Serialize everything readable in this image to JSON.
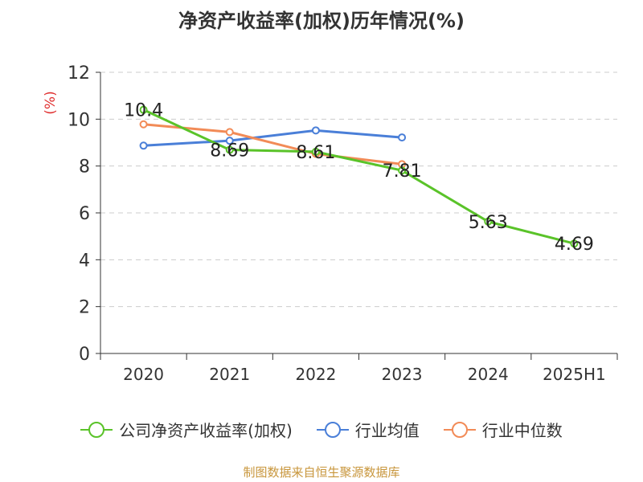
{
  "chart_data": {
    "type": "line",
    "title": "净资产收益率(加权)历年情况(%)",
    "ylabel": "(%)",
    "categories": [
      "2020",
      "2021",
      "2022",
      "2023",
      "2024",
      "2025H1"
    ],
    "ylim": [
      0,
      12
    ],
    "yticks": [
      0,
      2,
      4,
      6,
      8,
      10,
      12
    ],
    "grid": true,
    "legend_position": "bottom",
    "series": [
      {
        "name": "公司净资产收益率(加权)",
        "color": "#5ac329",
        "values": [
          10.4,
          8.69,
          8.61,
          7.81,
          5.63,
          4.69
        ],
        "labels": [
          "10.4",
          "8.69",
          "8.61",
          "7.81",
          "5.63",
          "4.69"
        ]
      },
      {
        "name": "行业均值",
        "color": "#4a7fd8",
        "values": [
          8.87,
          9.08,
          9.52,
          9.22,
          null,
          null
        ]
      },
      {
        "name": "行业中位数",
        "color": "#f28b57",
        "values": [
          9.78,
          9.45,
          8.52,
          8.08,
          null,
          null
        ]
      }
    ]
  },
  "source_note": "制图数据来自恒生聚源数据库"
}
